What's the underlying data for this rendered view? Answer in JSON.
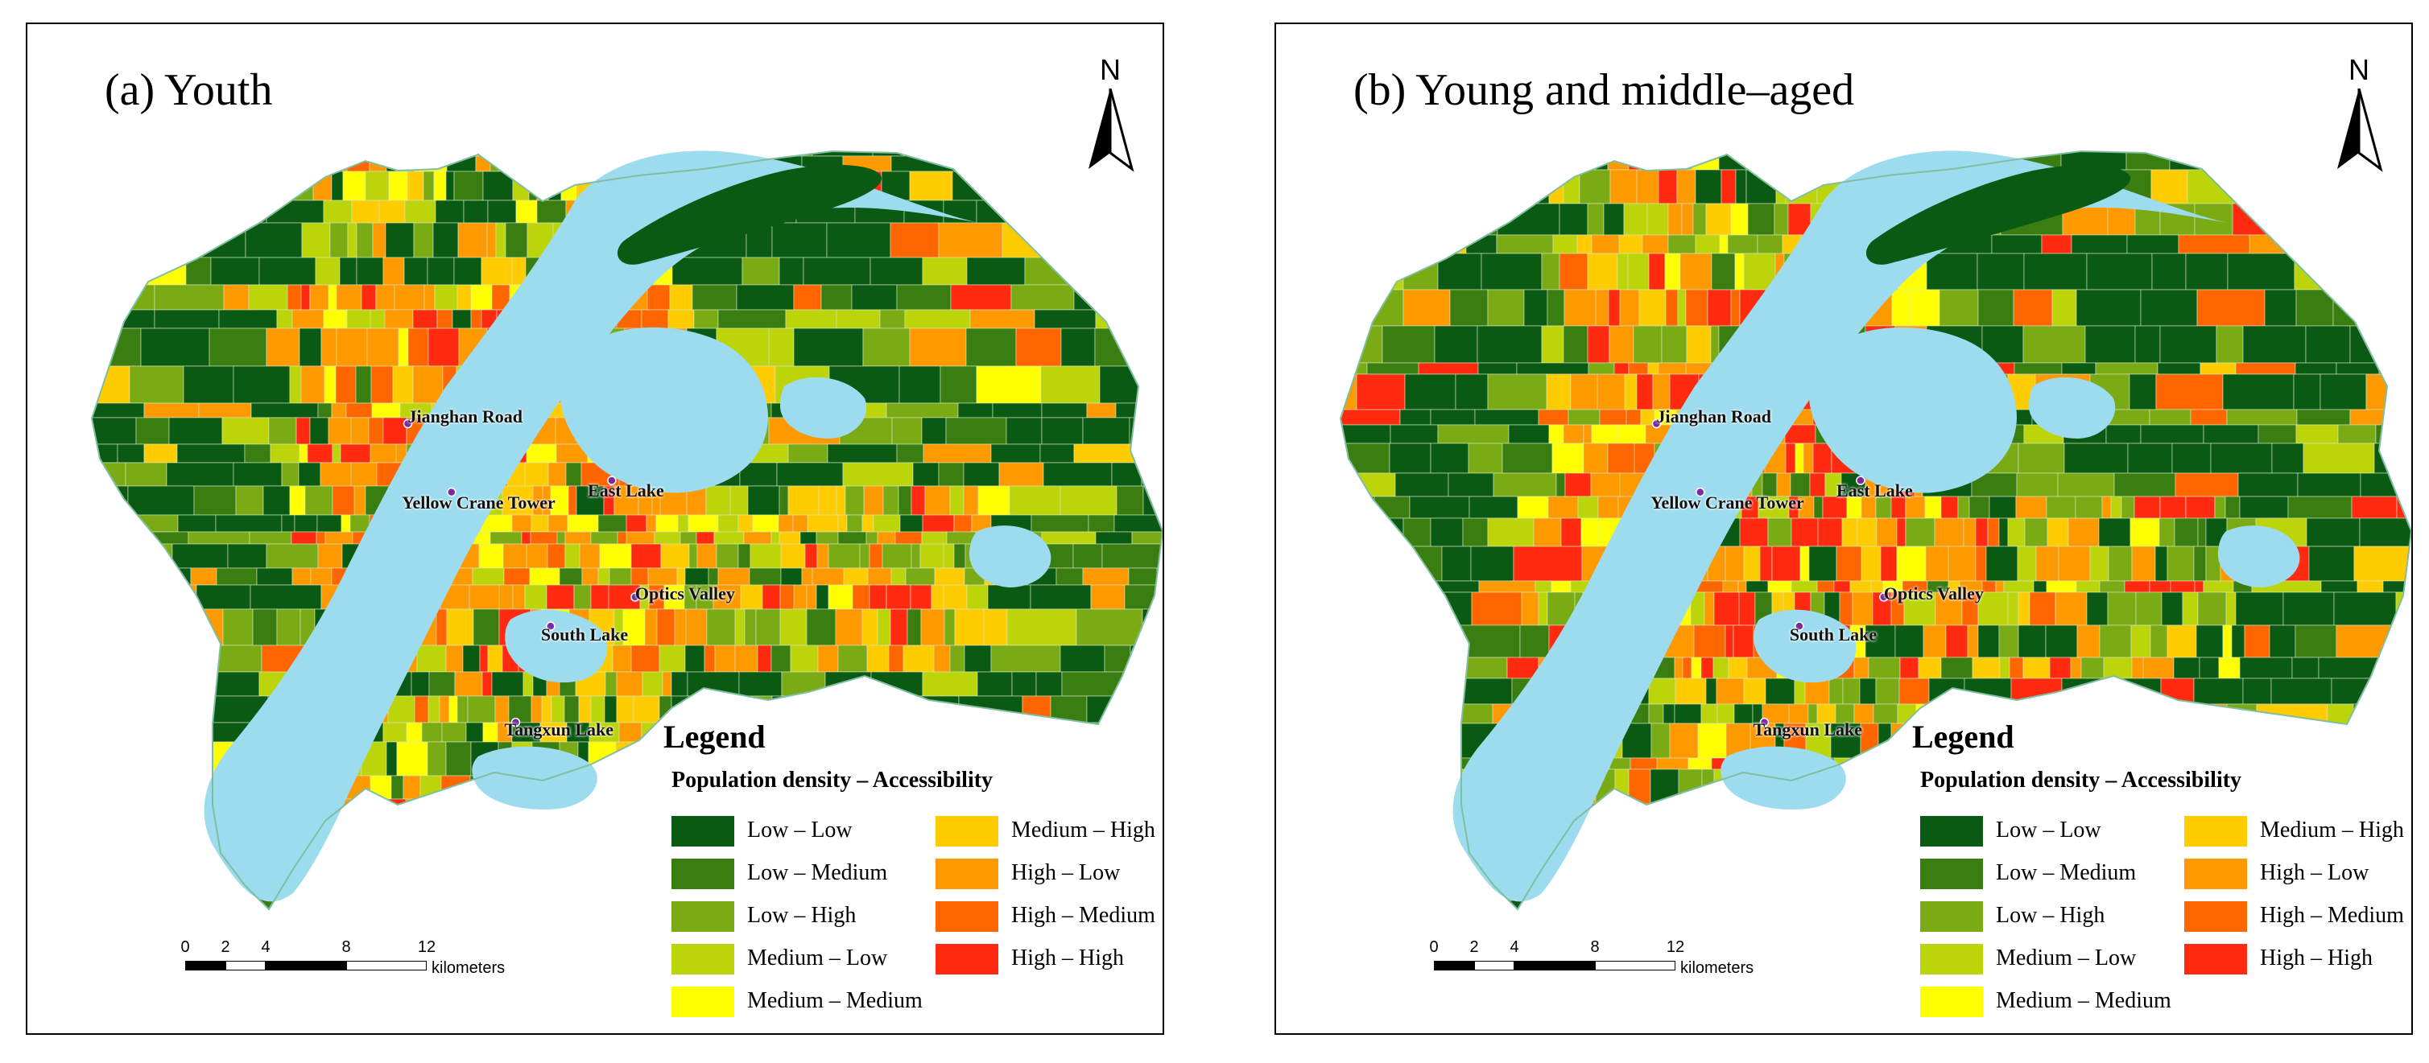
{
  "panels": [
    {
      "id": "a",
      "title": "(a) Youth",
      "north_label": "N",
      "places": [
        "Jianghan Road",
        "Yellow Crane Tower",
        "East Lake",
        "Optics Valley",
        "South Lake",
        "Tangxun Lake"
      ]
    },
    {
      "id": "b",
      "title": "(b) Young and middle–aged",
      "north_label": "N",
      "places": [
        "Jianghan Road",
        "Yellow Crane Tower",
        "East Lake",
        "Optics Valley",
        "South Lake",
        "Tangxun Lake"
      ]
    }
  ],
  "legend": {
    "title": "Legend",
    "subtitle": "Population density – Accessibility",
    "items": [
      {
        "label": "Low – Low",
        "color": "#0b5a14"
      },
      {
        "label": "Low – Medium",
        "color": "#3a7d10"
      },
      {
        "label": "Low – High",
        "color": "#7aab14"
      },
      {
        "label": "Medium – Low",
        "color": "#bcd40a"
      },
      {
        "label": "Medium – Medium",
        "color": "#ffff00"
      },
      {
        "label": "Medium – High",
        "color": "#ffcc00"
      },
      {
        "label": "High – Low",
        "color": "#ff9900"
      },
      {
        "label": "High – Medium",
        "color": "#ff6600"
      },
      {
        "label": "High – High",
        "color": "#ff2a10"
      }
    ]
  },
  "scale": {
    "ticks": [
      "0",
      "2",
      "4",
      "8",
      "12"
    ],
    "unit": "kilometers"
  },
  "colors": {
    "water": "#9ddcee",
    "poi": "#7a2aa0"
  }
}
